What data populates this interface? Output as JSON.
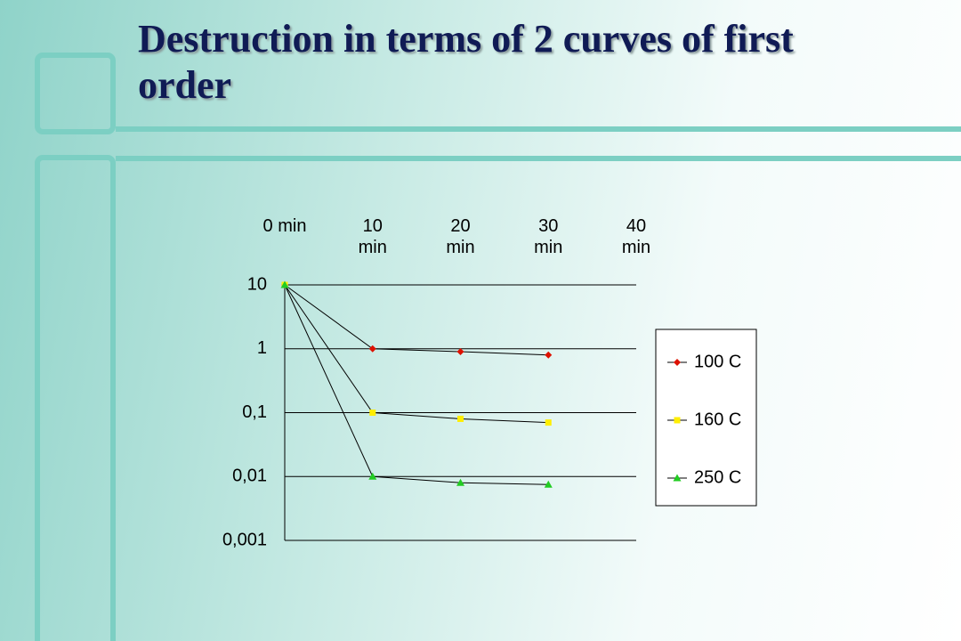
{
  "chart_data": {
    "type": "line",
    "title": "Destruction in terms of 2 curves of first order",
    "categories": [
      "0 min",
      "10 min",
      "20 min",
      "30 min",
      "40 min"
    ],
    "series": [
      {
        "name": "100 C",
        "color": "#dd1100",
        "marker": "diamond",
        "values": [
          10,
          1,
          0.9,
          0.8,
          null
        ]
      },
      {
        "name": "160 C",
        "color": "#ffee00",
        "marker": "square",
        "values": [
          10,
          0.1,
          0.08,
          0.07,
          null
        ]
      },
      {
        "name": "250 C",
        "color": "#22cc22",
        "marker": "triangle",
        "values": [
          10,
          0.01,
          0.008,
          0.0075,
          null
        ]
      }
    ],
    "line_color": "#000000",
    "log_y": true,
    "ylim": [
      0.001,
      10
    ],
    "yticks": [
      10,
      1,
      {
        "value": 0.1,
        "label": "0,1"
      },
      {
        "value": 0.01,
        "label": "0,01"
      },
      {
        "value": 0.001,
        "label": "0,001"
      }
    ],
    "grid": true,
    "legend": "right"
  }
}
